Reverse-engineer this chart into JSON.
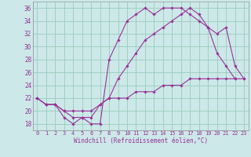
{
  "xlabel": "Windchill (Refroidissement éolien,°C)",
  "background_color": "#cce8e8",
  "grid_color": "#99ccbb",
  "line_color": "#993399",
  "xlim": [
    -0.5,
    23.5
  ],
  "ylim": [
    17.0,
    37.0
  ],
  "yticks": [
    18,
    20,
    22,
    24,
    26,
    28,
    30,
    32,
    34,
    36
  ],
  "xticks": [
    0,
    1,
    2,
    3,
    4,
    5,
    6,
    7,
    8,
    9,
    10,
    11,
    12,
    13,
    14,
    15,
    16,
    17,
    18,
    19,
    20,
    21,
    22,
    23
  ],
  "series1_x": [
    0,
    1,
    2,
    3,
    4,
    5,
    6,
    7,
    8,
    9,
    10,
    11,
    12,
    13,
    14,
    15,
    16,
    17,
    18,
    19,
    20,
    21,
    22,
    23
  ],
  "series1_y": [
    22,
    21,
    21,
    19,
    18,
    19,
    18,
    18,
    28,
    31,
    34,
    35,
    36,
    35,
    36,
    36,
    36,
    35,
    34,
    33,
    29,
    27,
    25,
    null
  ],
  "series2_x": [
    0,
    1,
    2,
    3,
    4,
    5,
    6,
    7,
    8,
    9,
    10,
    11,
    12,
    13,
    14,
    15,
    16,
    17,
    18,
    19,
    20,
    21,
    22,
    23
  ],
  "series2_y": [
    22,
    21,
    21,
    20,
    19,
    19,
    19,
    21,
    22,
    25,
    27,
    29,
    31,
    32,
    33,
    34,
    35,
    36,
    35,
    33,
    32,
    33,
    27,
    25
  ],
  "series3_x": [
    0,
    1,
    2,
    3,
    4,
    5,
    6,
    7,
    8,
    9,
    10,
    11,
    12,
    13,
    14,
    15,
    16,
    17,
    18,
    19,
    20,
    21,
    22,
    23
  ],
  "series3_y": [
    22,
    21,
    21,
    20,
    20,
    20,
    20,
    21,
    22,
    22,
    22,
    23,
    23,
    23,
    24,
    24,
    24,
    25,
    25,
    25,
    25,
    25,
    25,
    25
  ]
}
